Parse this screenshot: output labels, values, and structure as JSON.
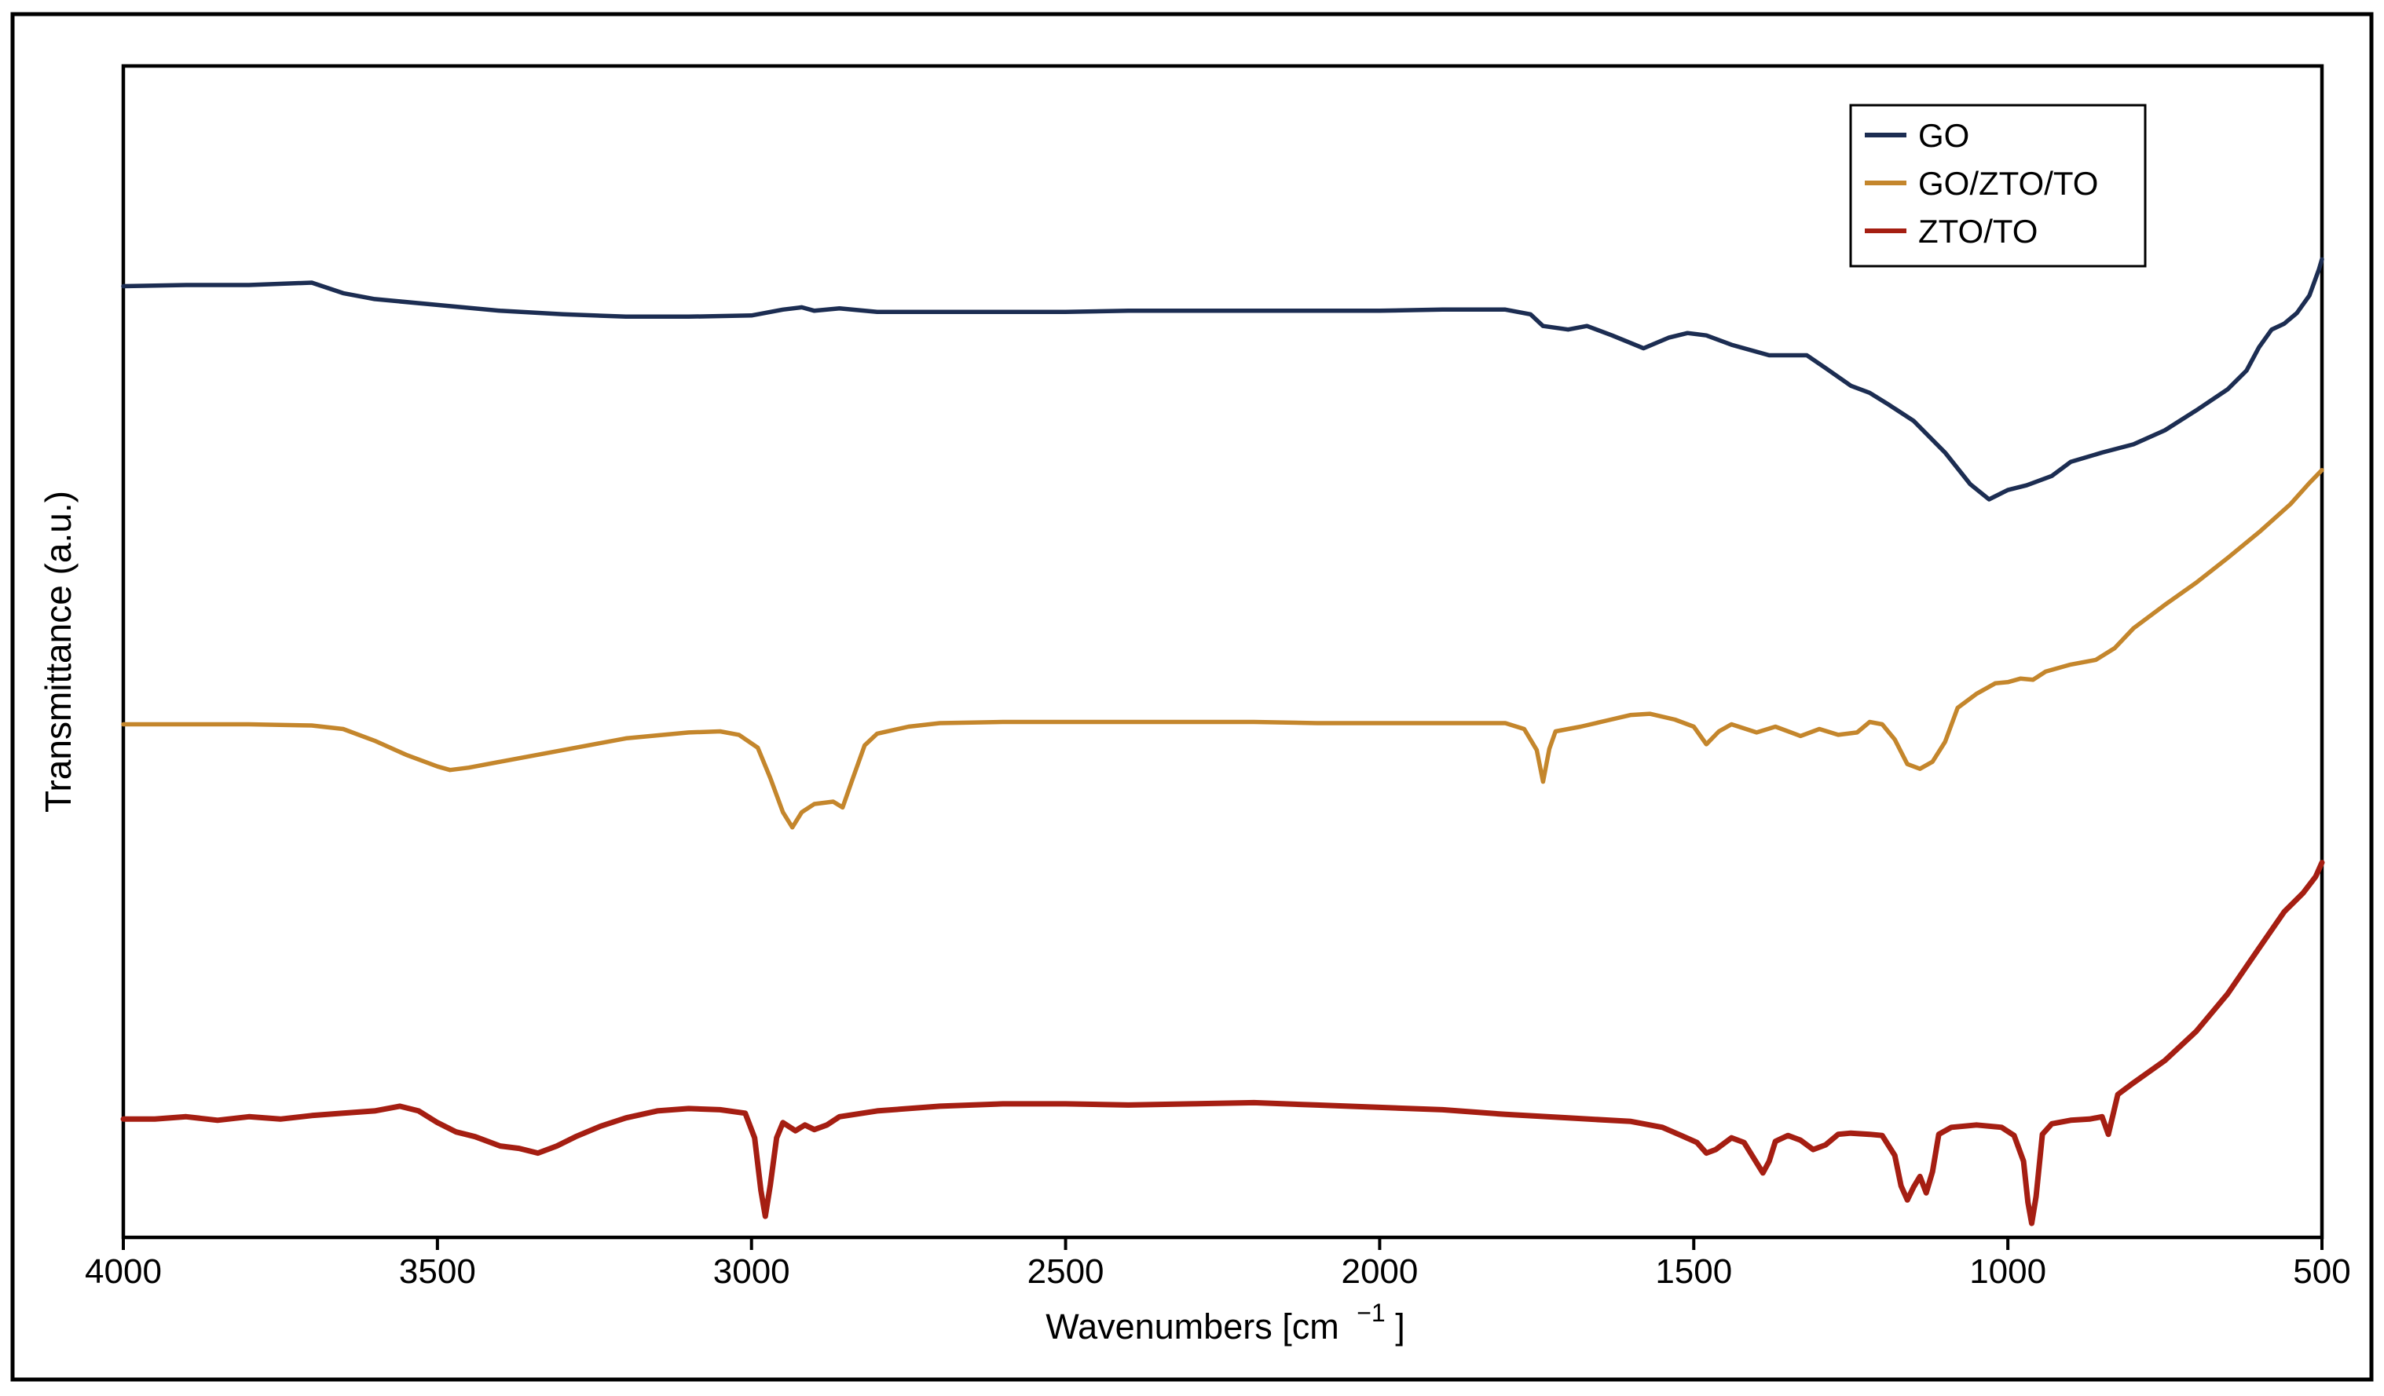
{
  "chart_data": {
    "type": "line",
    "title": "",
    "xlabel": "Wavenumbers [cm",
    "xlabel_sup": "−1",
    "xlabel_close": " ]",
    "ylabel": "Transmittance (a.u.)",
    "xlim": [
      4000,
      500
    ],
    "x_reversed": true,
    "ylim": [
      0,
      100
    ],
    "y_ticks_shown": false,
    "grid": false,
    "legend_position": "top-right",
    "x_ticks": [
      4000,
      3500,
      3000,
      2500,
      2000,
      1500,
      1000,
      500
    ],
    "x_tick_labels": [
      "4000",
      "3500",
      "3000",
      "2500",
      "2000",
      "1500",
      "1000",
      "500"
    ],
    "series": [
      {
        "name": "GO",
        "color": "#1c2d52",
        "points": [
          [
            4000,
            81.2
          ],
          [
            3900,
            81.3
          ],
          [
            3800,
            81.3
          ],
          [
            3700,
            81.5
          ],
          [
            3650,
            80.6
          ],
          [
            3600,
            80.1
          ],
          [
            3500,
            79.6
          ],
          [
            3400,
            79.1
          ],
          [
            3300,
            78.8
          ],
          [
            3200,
            78.6
          ],
          [
            3100,
            78.6
          ],
          [
            3000,
            78.7
          ],
          [
            2950,
            79.2
          ],
          [
            2920,
            79.4
          ],
          [
            2900,
            79.1
          ],
          [
            2860,
            79.3
          ],
          [
            2800,
            79.0
          ],
          [
            2700,
            79.0
          ],
          [
            2600,
            79.0
          ],
          [
            2500,
            79.0
          ],
          [
            2400,
            79.1
          ],
          [
            2300,
            79.1
          ],
          [
            2200,
            79.1
          ],
          [
            2100,
            79.1
          ],
          [
            2000,
            79.1
          ],
          [
            1900,
            79.2
          ],
          [
            1800,
            79.2
          ],
          [
            1760,
            78.8
          ],
          [
            1740,
            77.8
          ],
          [
            1700,
            77.5
          ],
          [
            1670,
            77.8
          ],
          [
            1630,
            77.0
          ],
          [
            1580,
            75.9
          ],
          [
            1540,
            76.8
          ],
          [
            1510,
            77.2
          ],
          [
            1480,
            77.0
          ],
          [
            1440,
            76.2
          ],
          [
            1380,
            75.3
          ],
          [
            1320,
            75.3
          ],
          [
            1290,
            74.2
          ],
          [
            1250,
            72.7
          ],
          [
            1220,
            72.1
          ],
          [
            1190,
            71.1
          ],
          [
            1150,
            69.7
          ],
          [
            1100,
            67.0
          ],
          [
            1060,
            64.3
          ],
          [
            1030,
            63.0
          ],
          [
            1000,
            63.8
          ],
          [
            970,
            64.2
          ],
          [
            930,
            65.0
          ],
          [
            900,
            66.2
          ],
          [
            850,
            67.0
          ],
          [
            800,
            67.7
          ],
          [
            750,
            68.9
          ],
          [
            700,
            70.6
          ],
          [
            650,
            72.4
          ],
          [
            620,
            74.0
          ],
          [
            600,
            76.0
          ],
          [
            580,
            77.5
          ],
          [
            560,
            78.0
          ],
          [
            540,
            78.9
          ],
          [
            520,
            80.4
          ],
          [
            505,
            82.6
          ],
          [
            500,
            83.5
          ]
        ]
      },
      {
        "name": "GO/ZTO/TO",
        "color": "#c4862c",
        "points": [
          [
            4000,
            43.8
          ],
          [
            3900,
            43.8
          ],
          [
            3800,
            43.8
          ],
          [
            3700,
            43.7
          ],
          [
            3650,
            43.4
          ],
          [
            3600,
            42.4
          ],
          [
            3550,
            41.2
          ],
          [
            3500,
            40.2
          ],
          [
            3480,
            39.9
          ],
          [
            3450,
            40.1
          ],
          [
            3400,
            40.6
          ],
          [
            3300,
            41.6
          ],
          [
            3200,
            42.6
          ],
          [
            3100,
            43.1
          ],
          [
            3050,
            43.2
          ],
          [
            3020,
            42.9
          ],
          [
            2990,
            41.8
          ],
          [
            2970,
            39.2
          ],
          [
            2950,
            36.3
          ],
          [
            2935,
            35.0
          ],
          [
            2920,
            36.3
          ],
          [
            2900,
            37.0
          ],
          [
            2870,
            37.2
          ],
          [
            2855,
            36.7
          ],
          [
            2840,
            39.0
          ],
          [
            2820,
            42.0
          ],
          [
            2800,
            43.0
          ],
          [
            2750,
            43.6
          ],
          [
            2700,
            43.9
          ],
          [
            2600,
            44.0
          ],
          [
            2500,
            44.0
          ],
          [
            2400,
            44.0
          ],
          [
            2300,
            44.0
          ],
          [
            2200,
            44.0
          ],
          [
            2100,
            43.9
          ],
          [
            2000,
            43.9
          ],
          [
            1900,
            43.9
          ],
          [
            1800,
            43.9
          ],
          [
            1770,
            43.4
          ],
          [
            1750,
            41.6
          ],
          [
            1740,
            38.9
          ],
          [
            1730,
            41.7
          ],
          [
            1720,
            43.2
          ],
          [
            1680,
            43.6
          ],
          [
            1640,
            44.1
          ],
          [
            1600,
            44.6
          ],
          [
            1570,
            44.7
          ],
          [
            1530,
            44.2
          ],
          [
            1500,
            43.6
          ],
          [
            1480,
            42.1
          ],
          [
            1460,
            43.2
          ],
          [
            1440,
            43.8
          ],
          [
            1400,
            43.1
          ],
          [
            1370,
            43.6
          ],
          [
            1330,
            42.8
          ],
          [
            1300,
            43.4
          ],
          [
            1270,
            42.9
          ],
          [
            1240,
            43.1
          ],
          [
            1220,
            44.0
          ],
          [
            1200,
            43.8
          ],
          [
            1180,
            42.5
          ],
          [
            1160,
            40.4
          ],
          [
            1140,
            40.0
          ],
          [
            1120,
            40.6
          ],
          [
            1100,
            42.3
          ],
          [
            1080,
            45.2
          ],
          [
            1050,
            46.4
          ],
          [
            1020,
            47.3
          ],
          [
            1000,
            47.4
          ],
          [
            980,
            47.7
          ],
          [
            960,
            47.6
          ],
          [
            940,
            48.3
          ],
          [
            900,
            48.9
          ],
          [
            860,
            49.3
          ],
          [
            830,
            50.3
          ],
          [
            800,
            52.0
          ],
          [
            750,
            54.0
          ],
          [
            700,
            55.9
          ],
          [
            650,
            58.0
          ],
          [
            600,
            60.2
          ],
          [
            550,
            62.6
          ],
          [
            520,
            64.4
          ],
          [
            500,
            65.5
          ]
        ]
      },
      {
        "name": "ZTO/TO",
        "color": "#a51e12",
        "points": [
          [
            4000,
            10.1
          ],
          [
            3950,
            10.1
          ],
          [
            3900,
            10.3
          ],
          [
            3850,
            10.0
          ],
          [
            3800,
            10.3
          ],
          [
            3750,
            10.1
          ],
          [
            3700,
            10.4
          ],
          [
            3650,
            10.6
          ],
          [
            3600,
            10.8
          ],
          [
            3560,
            11.2
          ],
          [
            3530,
            10.8
          ],
          [
            3500,
            9.8
          ],
          [
            3470,
            9.0
          ],
          [
            3440,
            8.6
          ],
          [
            3400,
            7.8
          ],
          [
            3370,
            7.6
          ],
          [
            3340,
            7.2
          ],
          [
            3310,
            7.8
          ],
          [
            3280,
            8.6
          ],
          [
            3240,
            9.5
          ],
          [
            3200,
            10.2
          ],
          [
            3150,
            10.8
          ],
          [
            3100,
            11.0
          ],
          [
            3050,
            10.9
          ],
          [
            3010,
            10.6
          ],
          [
            2995,
            8.5
          ],
          [
            2985,
            4.0
          ],
          [
            2978,
            1.8
          ],
          [
            2970,
            4.5
          ],
          [
            2960,
            8.5
          ],
          [
            2950,
            9.8
          ],
          [
            2930,
            9.1
          ],
          [
            2915,
            9.6
          ],
          [
            2900,
            9.2
          ],
          [
            2880,
            9.6
          ],
          [
            2860,
            10.3
          ],
          [
            2800,
            10.8
          ],
          [
            2700,
            11.2
          ],
          [
            2600,
            11.4
          ],
          [
            2500,
            11.4
          ],
          [
            2400,
            11.3
          ],
          [
            2300,
            11.4
          ],
          [
            2200,
            11.5
          ],
          [
            2100,
            11.3
          ],
          [
            2000,
            11.1
          ],
          [
            1900,
            10.9
          ],
          [
            1800,
            10.5
          ],
          [
            1700,
            10.2
          ],
          [
            1600,
            9.9
          ],
          [
            1550,
            9.4
          ],
          [
            1520,
            8.7
          ],
          [
            1495,
            8.1
          ],
          [
            1480,
            7.2
          ],
          [
            1465,
            7.5
          ],
          [
            1440,
            8.5
          ],
          [
            1420,
            8.1
          ],
          [
            1405,
            6.8
          ],
          [
            1390,
            5.5
          ],
          [
            1380,
            6.5
          ],
          [
            1370,
            8.2
          ],
          [
            1350,
            8.7
          ],
          [
            1330,
            8.3
          ],
          [
            1310,
            7.5
          ],
          [
            1290,
            7.9
          ],
          [
            1270,
            8.8
          ],
          [
            1250,
            8.9
          ],
          [
            1220,
            8.8
          ],
          [
            1200,
            8.7
          ],
          [
            1180,
            7.0
          ],
          [
            1170,
            4.4
          ],
          [
            1160,
            3.2
          ],
          [
            1150,
            4.3
          ],
          [
            1140,
            5.2
          ],
          [
            1130,
            3.8
          ],
          [
            1120,
            5.6
          ],
          [
            1110,
            8.8
          ],
          [
            1090,
            9.4
          ],
          [
            1050,
            9.6
          ],
          [
            1010,
            9.4
          ],
          [
            990,
            8.7
          ],
          [
            975,
            6.5
          ],
          [
            968,
            3.0
          ],
          [
            962,
            1.2
          ],
          [
            955,
            3.5
          ],
          [
            945,
            8.8
          ],
          [
            930,
            9.7
          ],
          [
            900,
            10.0
          ],
          [
            870,
            10.1
          ],
          [
            850,
            10.3
          ],
          [
            840,
            8.8
          ],
          [
            832,
            10.6
          ],
          [
            825,
            12.2
          ],
          [
            800,
            13.2
          ],
          [
            750,
            15.1
          ],
          [
            700,
            17.6
          ],
          [
            650,
            20.8
          ],
          [
            600,
            24.7
          ],
          [
            560,
            27.8
          ],
          [
            530,
            29.4
          ],
          [
            510,
            30.8
          ],
          [
            500,
            32.0
          ]
        ]
      }
    ]
  }
}
